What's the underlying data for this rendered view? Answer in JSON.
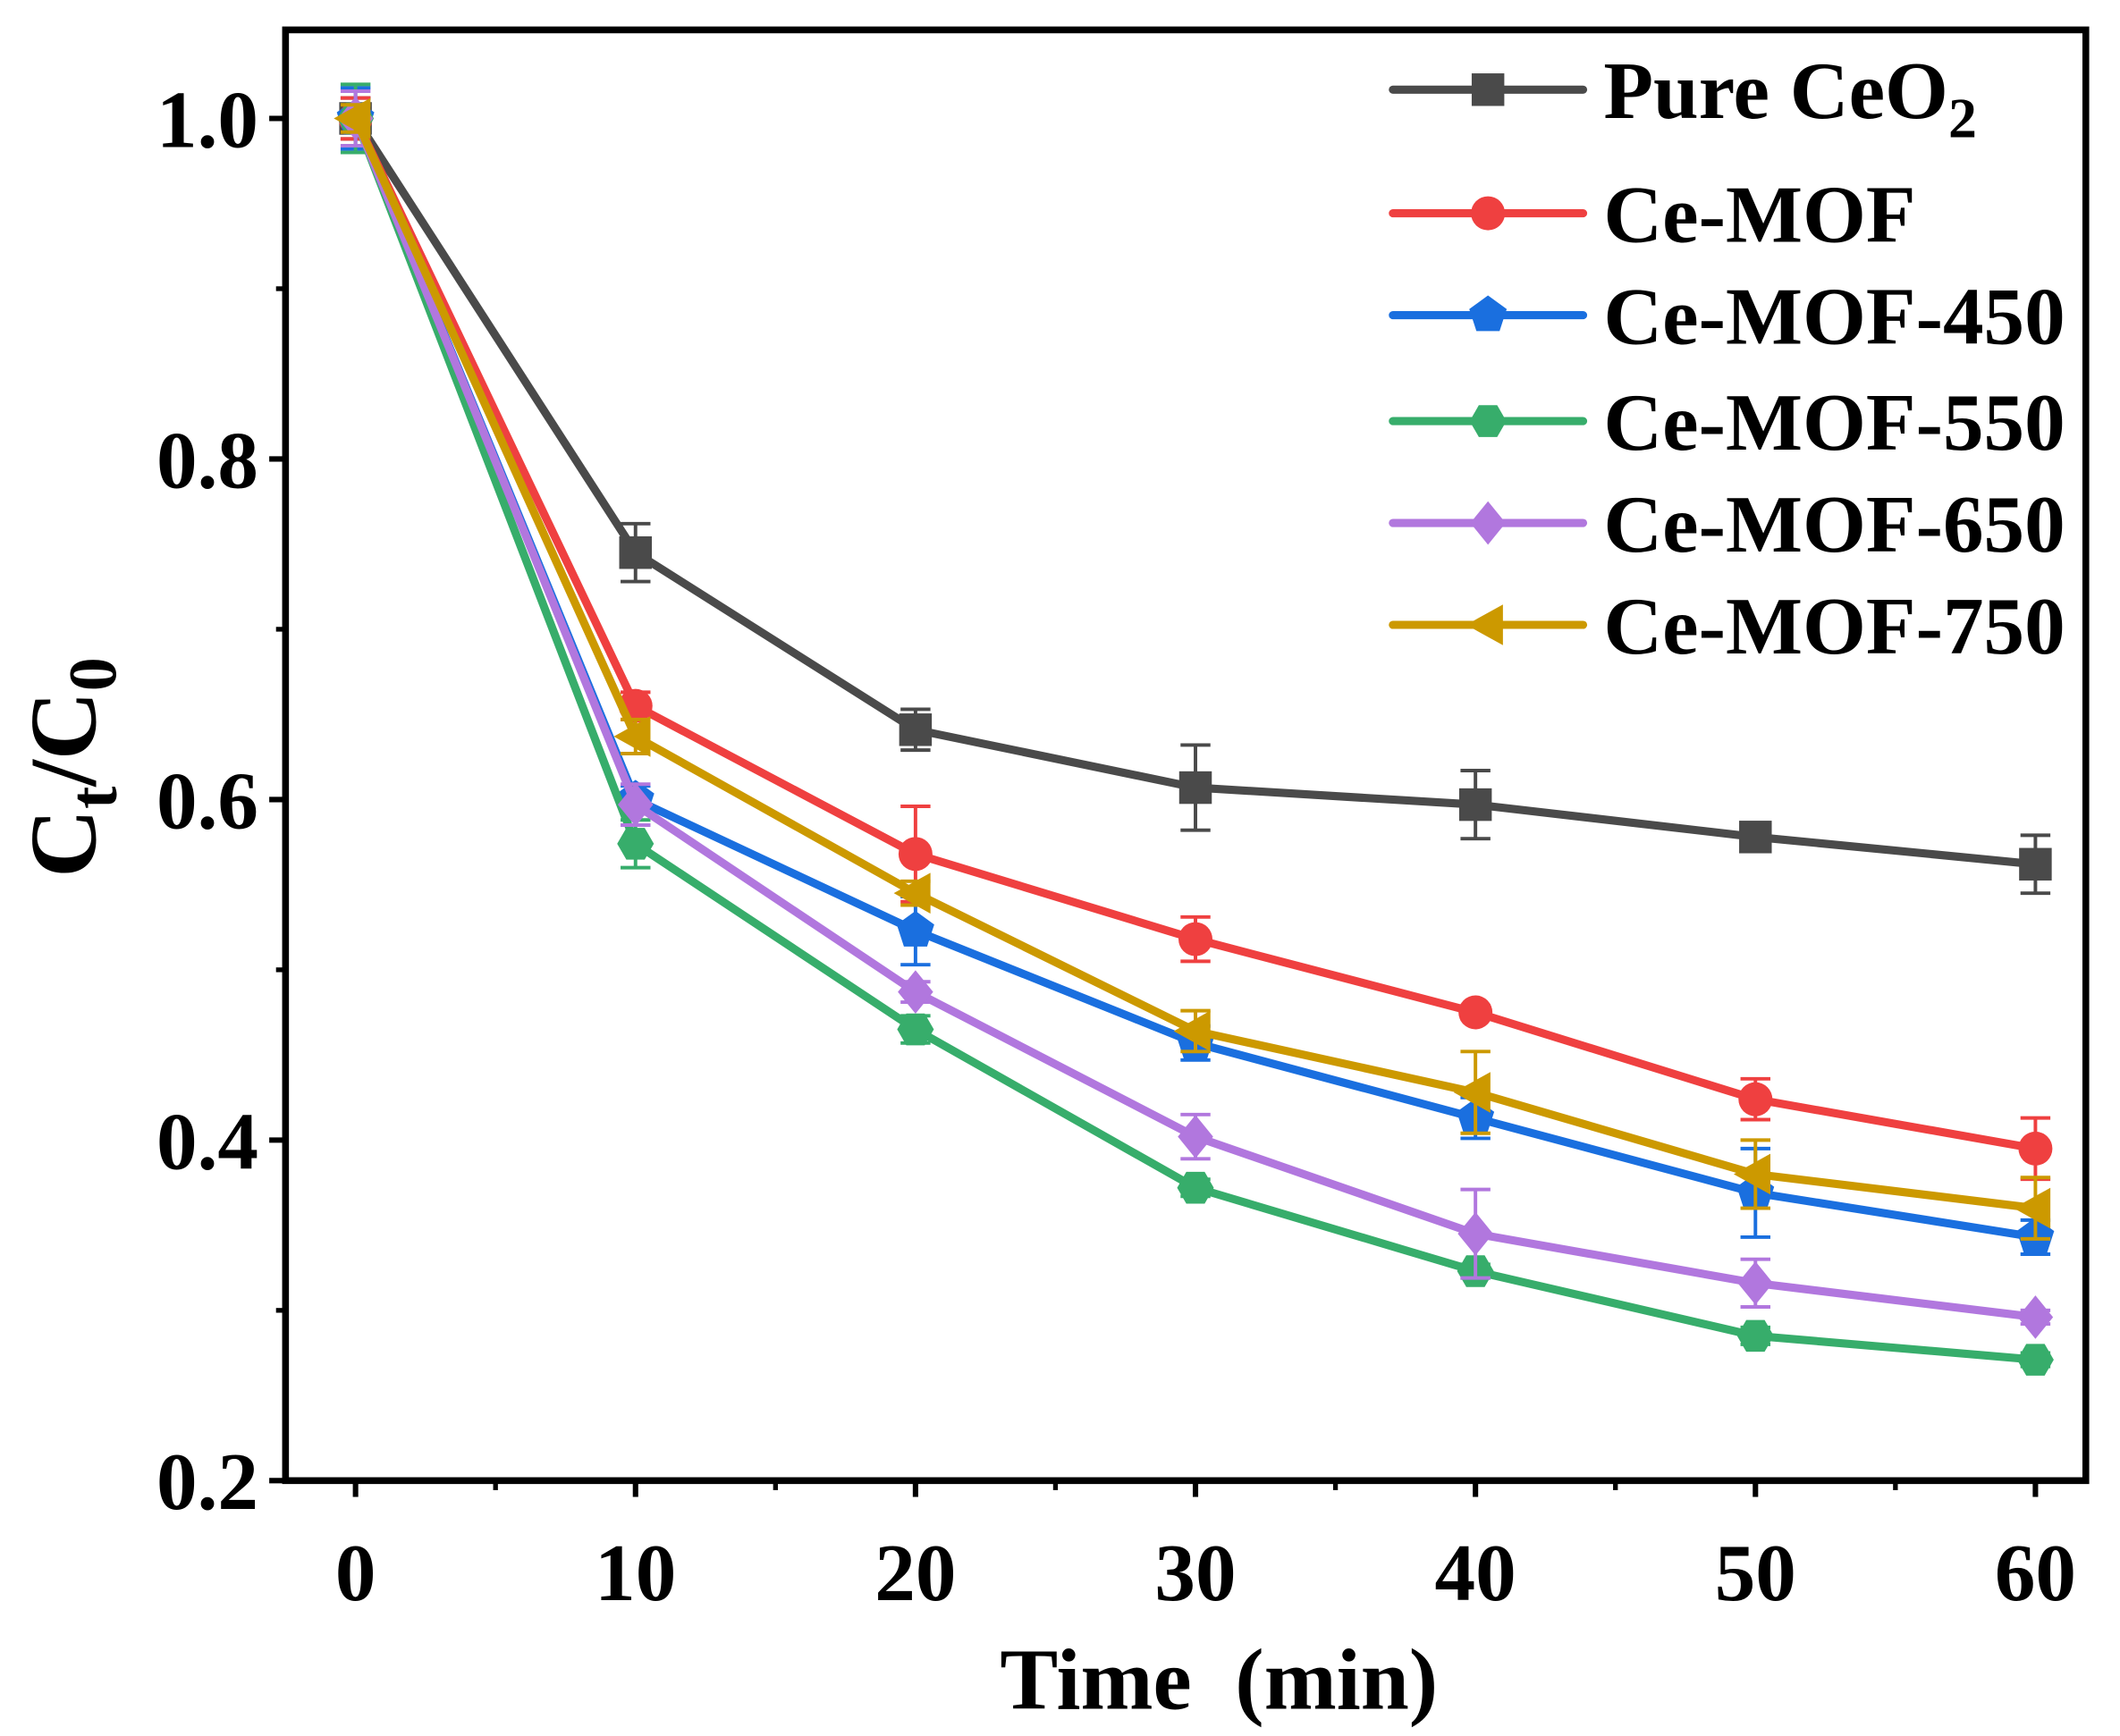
{
  "chart_data": {
    "type": "line",
    "xlabel": "Time  (min)",
    "ylabel": [
      {
        "text": "C"
      },
      {
        "text": "t",
        "sub": true
      },
      {
        "text": "/C"
      },
      {
        "text": "0",
        "sub": true
      }
    ],
    "xlim": [
      -2.5,
      61.8
    ],
    "ylim": [
      0.2,
      1.052
    ],
    "x_ticks": [
      0,
      10,
      20,
      30,
      40,
      50,
      60
    ],
    "x_tick_labels": [
      "0",
      "10",
      "20",
      "30",
      "40",
      "50",
      "60"
    ],
    "x_minor_ticks": [
      5,
      15,
      25,
      35,
      45,
      55
    ],
    "y_ticks": [
      0.2,
      0.4,
      0.6,
      0.8,
      1.0
    ],
    "y_tick_labels": [
      "0.2",
      "0.4",
      "0.6",
      "0.8",
      "1.0"
    ],
    "y_minor_ticks": [
      0.3,
      0.5,
      0.7,
      0.9
    ],
    "grid": false,
    "legend_position": "top-right",
    "x": [
      0,
      10,
      20,
      30,
      40,
      50,
      60
    ],
    "series": [
      {
        "name": "Pure CeO",
        "name_sub": "2",
        "color": "#4a4a4a",
        "marker": "square",
        "values": [
          1.0,
          0.745,
          0.641,
          0.607,
          0.597,
          0.578,
          0.562
        ],
        "errors": [
          0.012,
          0.017,
          0.012,
          0.025,
          0.02,
          0.006,
          0.017
        ]
      },
      {
        "name": "Ce-MOF",
        "color": "#ef4040",
        "marker": "circle",
        "values": [
          1.0,
          0.655,
          0.568,
          0.518,
          0.475,
          0.424,
          0.395
        ],
        "errors": [
          0.012,
          0.008,
          0.028,
          0.013,
          0.004,
          0.012,
          0.018
        ]
      },
      {
        "name": "Ce-MOF-450",
        "color": "#1a6fdf",
        "marker": "pentagon",
        "values": [
          1.0,
          0.6,
          0.523,
          0.457,
          0.413,
          0.369,
          0.343
        ],
        "errors": [
          0.018,
          0.008,
          0.02,
          0.01,
          0.012,
          0.026,
          0.01
        ]
      },
      {
        "name": "Ce-MOF-550",
        "color": "#37ad6b",
        "marker": "hexagon",
        "values": [
          1.0,
          0.574,
          0.465,
          0.372,
          0.323,
          0.285,
          0.271
        ],
        "errors": [
          0.02,
          0.014,
          0.008,
          0.005,
          0.004,
          0.005,
          0.004
        ]
      },
      {
        "name": "Ce-MOF-650",
        "color": "#b177de",
        "marker": "diamond",
        "values": [
          1.0,
          0.597,
          0.487,
          0.402,
          0.345,
          0.316,
          0.296
        ],
        "errors": [
          0.016,
          0.012,
          0.006,
          0.013,
          0.026,
          0.014,
          0.004
        ]
      },
      {
        "name": "Ce-MOF-750",
        "color": "#cc9900",
        "marker": "left-triangle",
        "values": [
          1.0,
          0.637,
          0.545,
          0.464,
          0.428,
          0.38,
          0.36
        ],
        "errors": [
          0.008,
          0.01,
          0.007,
          0.012,
          0.024,
          0.02,
          0.018
        ]
      }
    ]
  }
}
